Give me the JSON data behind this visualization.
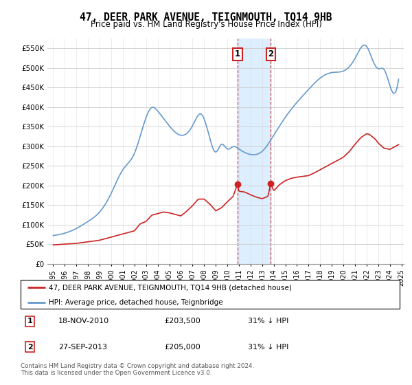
{
  "title": "47, DEER PARK AVENUE, TEIGNMOUTH, TQ14 9HB",
  "subtitle": "Price paid vs. HM Land Registry's House Price Index (HPI)",
  "legend_line1": "47, DEER PARK AVENUE, TEIGNMOUTH, TQ14 9HB (detached house)",
  "legend_line2": "HPI: Average price, detached house, Teignbridge",
  "sale1_date": "18-NOV-2010",
  "sale1_price": 203500,
  "sale1_label": "31% ↓ HPI",
  "sale2_date": "27-SEP-2013",
  "sale2_price": 205000,
  "sale2_label": "31% ↓ HPI",
  "footer": "Contains HM Land Registry data © Crown copyright and database right 2024.\nThis data is licensed under the Open Government Licence v3.0.",
  "hpi_color": "#6699cc",
  "price_color": "#cc2222",
  "sale1_x": 2010.88,
  "sale2_x": 2013.74,
  "vline_color": "#cc4444",
  "highlight_color": "#ddeeff",
  "ylim": [
    0,
    575000
  ],
  "xlim_start": 1994.5,
  "xlim_end": 2025.2,
  "yticks": [
    0,
    50000,
    100000,
    150000,
    200000,
    250000,
    300000,
    350000,
    400000,
    450000,
    500000,
    550000
  ],
  "ytick_labels": [
    "£0",
    "£50K",
    "£100K",
    "£150K",
    "£200K",
    "£250K",
    "£300K",
    "£350K",
    "£400K",
    "£450K",
    "£500K",
    "£550K"
  ],
  "xticks": [
    1995,
    1996,
    1997,
    1998,
    1999,
    2000,
    2001,
    2002,
    2003,
    2004,
    2005,
    2006,
    2007,
    2008,
    2009,
    2010,
    2011,
    2012,
    2013,
    2014,
    2015,
    2016,
    2017,
    2018,
    2019,
    2020,
    2021,
    2022,
    2023,
    2024,
    2025
  ]
}
